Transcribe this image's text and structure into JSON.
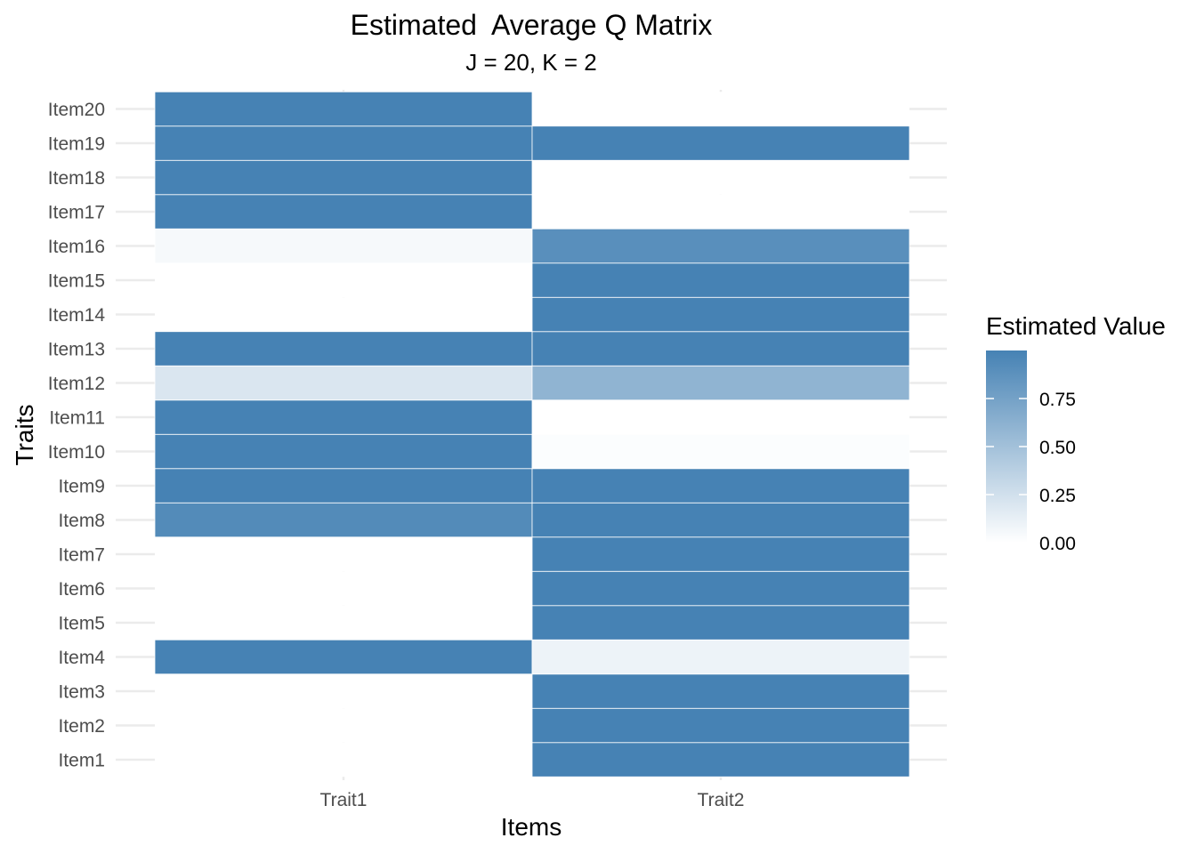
{
  "chart_data": {
    "type": "heatmap",
    "title": "Estimated  Average Q Matrix",
    "subtitle": "J = 20, K = 2",
    "xlabel": "Items",
    "ylabel": "Traits",
    "x_categories": [
      "Trait1",
      "Trait2"
    ],
    "y_categories": [
      "Item1",
      "Item2",
      "Item3",
      "Item4",
      "Item5",
      "Item6",
      "Item7",
      "Item8",
      "Item9",
      "Item10",
      "Item11",
      "Item12",
      "Item13",
      "Item14",
      "Item15",
      "Item16",
      "Item17",
      "Item18",
      "Item19",
      "Item20"
    ],
    "values": {
      "Item1": [
        0.0,
        1.0
      ],
      "Item2": [
        0.0,
        1.0
      ],
      "Item3": [
        0.0,
        1.0
      ],
      "Item4": [
        1.0,
        0.1
      ],
      "Item5": [
        0.0,
        1.0
      ],
      "Item6": [
        0.0,
        1.0
      ],
      "Item7": [
        0.0,
        1.0
      ],
      "Item8": [
        0.93,
        1.0
      ],
      "Item9": [
        1.0,
        1.0
      ],
      "Item10": [
        1.0,
        0.02
      ],
      "Item11": [
        1.0,
        0.0
      ],
      "Item12": [
        0.2,
        0.6
      ],
      "Item13": [
        1.0,
        1.0
      ],
      "Item14": [
        0.0,
        1.0
      ],
      "Item15": [
        0.0,
        1.0
      ],
      "Item16": [
        0.05,
        0.9
      ],
      "Item17": [
        1.0,
        0.0
      ],
      "Item18": [
        1.0,
        0.0
      ],
      "Item19": [
        1.0,
        1.0
      ],
      "Item20": [
        1.0,
        0.0
      ]
    },
    "color_scale": {
      "low": "#ffffff",
      "high": "#4682b4",
      "limits": [
        0,
        1
      ]
    },
    "legend": {
      "title": "Estimated Value",
      "position": "right",
      "ticks": [
        0.0,
        0.25,
        0.5,
        0.75
      ],
      "tick_labels": [
        "0.00",
        "0.25",
        "0.50",
        "0.75"
      ]
    },
    "grid": true
  }
}
